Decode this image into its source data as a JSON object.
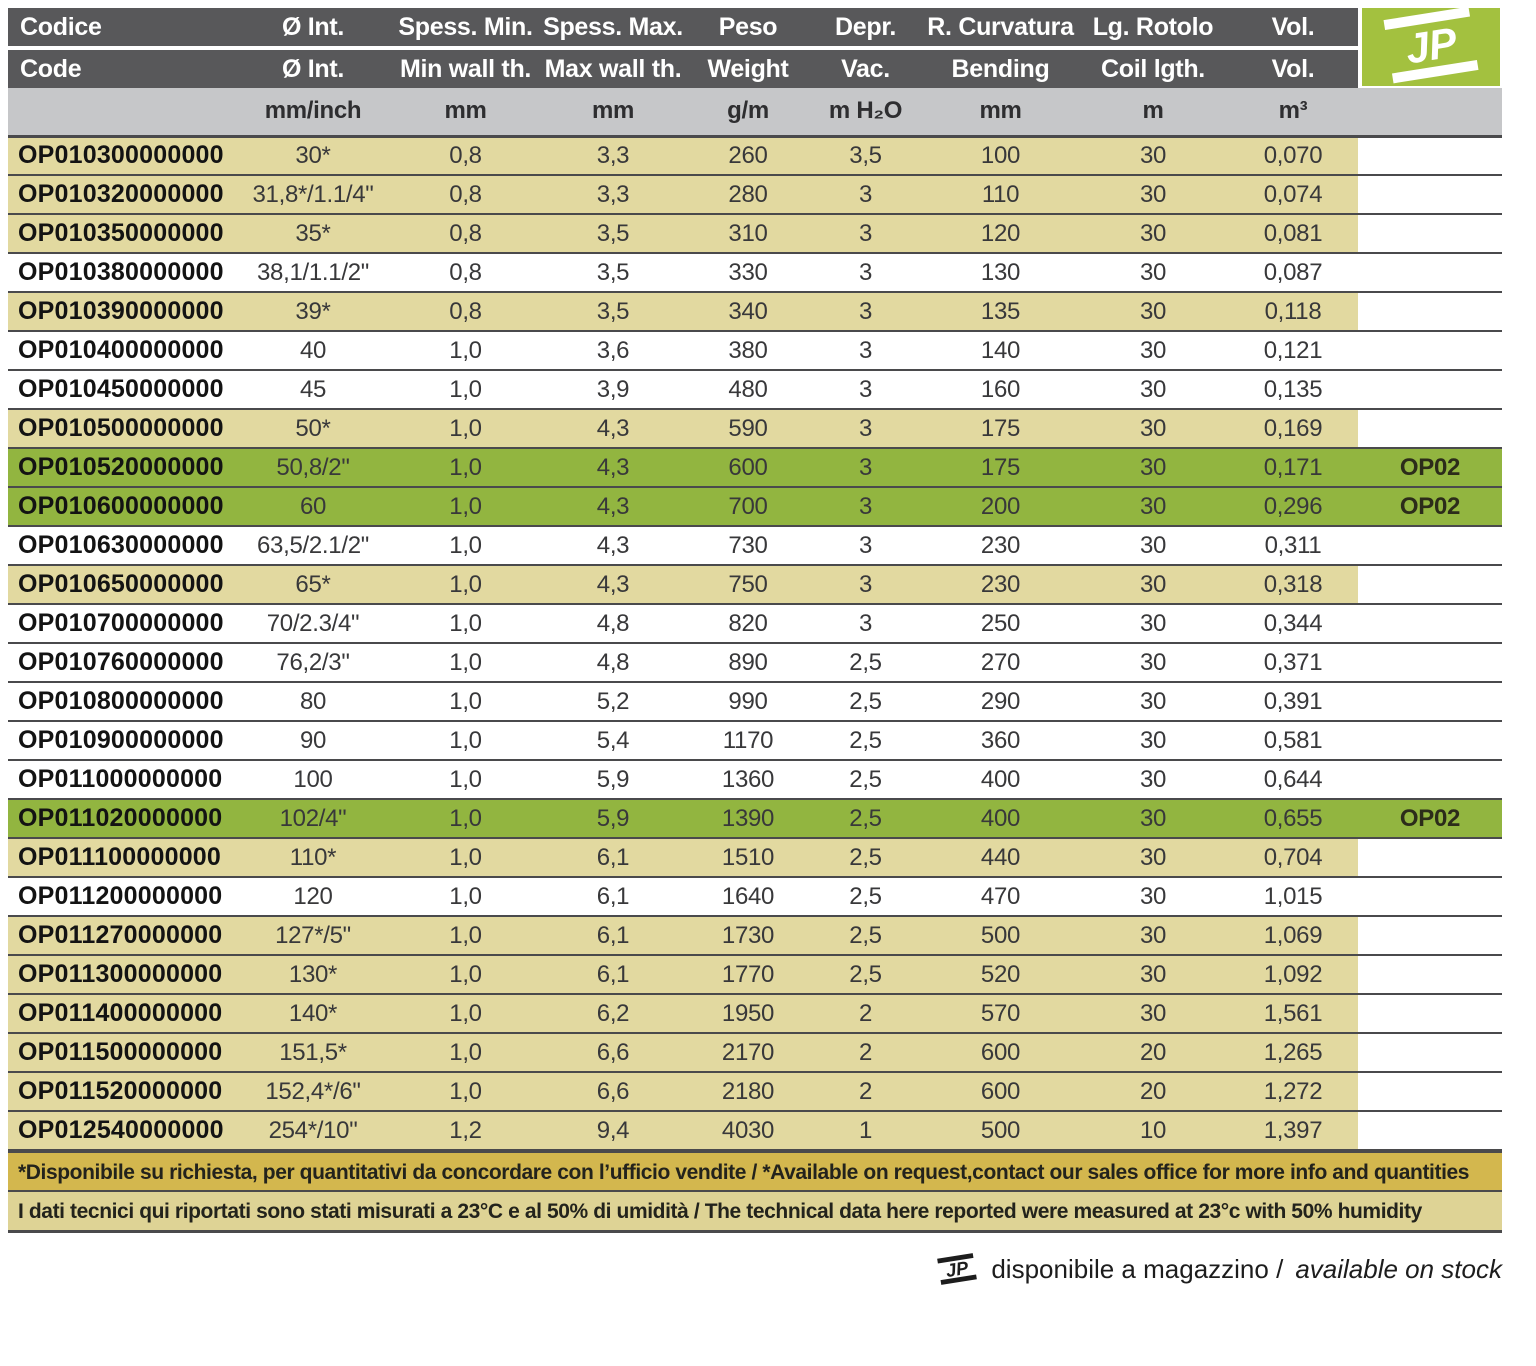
{
  "colors": {
    "header_bg": "#58585a",
    "units_bg": "#c6c7c9",
    "tan": "#e2d9a0",
    "green": "#92b540",
    "logo_green": "#a3c13f",
    "note1_bg": "#d3b74e",
    "note2_bg": "#ded395",
    "line": "#4a4a4c"
  },
  "table": {
    "header_it": [
      "Codice",
      "Ø Int.",
      "Spess. Min.",
      "Spess. Max.",
      "Peso",
      "Depr.",
      "R. Curvatura",
      "Lg. Rotolo",
      "Vol."
    ],
    "header_en": [
      "Code",
      "Ø Int.",
      "Min wall th.",
      "Max wall th.",
      "Weight",
      "Vac.",
      "Bending",
      "Coil lgth.",
      "Vol."
    ],
    "units": [
      "",
      "mm/inch",
      "mm",
      "mm",
      "g/m",
      "m H₂O",
      "mm",
      "m",
      "m³",
      ""
    ],
    "logo_text": "JP",
    "rows": [
      {
        "code": "OP010300000000",
        "diameter": "30*",
        "min_wall": "0,8",
        "max_wall": "3,3",
        "weight": "260",
        "vacuum": "3,5",
        "bending": "100",
        "coil_length": "30",
        "volume": "0,070",
        "tag": "",
        "bg": "tan"
      },
      {
        "code": "OP010320000000",
        "diameter": "31,8*/1.1/4\"",
        "min_wall": "0,8",
        "max_wall": "3,3",
        "weight": "280",
        "vacuum": "3",
        "bending": "110",
        "coil_length": "30",
        "volume": "0,074",
        "tag": "",
        "bg": "tan"
      },
      {
        "code": "OP010350000000",
        "diameter": "35*",
        "min_wall": "0,8",
        "max_wall": "3,5",
        "weight": "310",
        "vacuum": "3",
        "bending": "120",
        "coil_length": "30",
        "volume": "0,081",
        "tag": "",
        "bg": "tan"
      },
      {
        "code": "OP010380000000",
        "diameter": "38,1/1.1/2\"",
        "min_wall": "0,8",
        "max_wall": "3,5",
        "weight": "330",
        "vacuum": "3",
        "bending": "130",
        "coil_length": "30",
        "volume": "0,087",
        "tag": "",
        "bg": "white"
      },
      {
        "code": "OP010390000000",
        "diameter": "39*",
        "min_wall": "0,8",
        "max_wall": "3,5",
        "weight": "340",
        "vacuum": "3",
        "bending": "135",
        "coil_length": "30",
        "volume": "0,118",
        "tag": "",
        "bg": "tan"
      },
      {
        "code": "OP010400000000",
        "diameter": "40",
        "min_wall": "1,0",
        "max_wall": "3,6",
        "weight": "380",
        "vacuum": "3",
        "bending": "140",
        "coil_length": "30",
        "volume": "0,121",
        "tag": "",
        "bg": "white"
      },
      {
        "code": "OP010450000000",
        "diameter": "45",
        "min_wall": "1,0",
        "max_wall": "3,9",
        "weight": "480",
        "vacuum": "3",
        "bending": "160",
        "coil_length": "30",
        "volume": "0,135",
        "tag": "",
        "bg": "white"
      },
      {
        "code": "OP010500000000",
        "diameter": "50*",
        "min_wall": "1,0",
        "max_wall": "4,3",
        "weight": "590",
        "vacuum": "3",
        "bending": "175",
        "coil_length": "30",
        "volume": "0,169",
        "tag": "",
        "bg": "tan"
      },
      {
        "code": "OP010520000000",
        "diameter": "50,8/2\"",
        "min_wall": "1,0",
        "max_wall": "4,3",
        "weight": "600",
        "vacuum": "3",
        "bending": "175",
        "coil_length": "30",
        "volume": "0,171",
        "tag": "OP02",
        "bg": "green"
      },
      {
        "code": "OP010600000000",
        "diameter": "60",
        "min_wall": "1,0",
        "max_wall": "4,3",
        "weight": "700",
        "vacuum": "3",
        "bending": "200",
        "coil_length": "30",
        "volume": "0,296",
        "tag": "OP02",
        "bg": "green"
      },
      {
        "code": "OP010630000000",
        "diameter": "63,5/2.1/2\"",
        "min_wall": "1,0",
        "max_wall": "4,3",
        "weight": "730",
        "vacuum": "3",
        "bending": "230",
        "coil_length": "30",
        "volume": "0,311",
        "tag": "",
        "bg": "white"
      },
      {
        "code": "OP010650000000",
        "diameter": "65*",
        "min_wall": "1,0",
        "max_wall": "4,3",
        "weight": "750",
        "vacuum": "3",
        "bending": "230",
        "coil_length": "30",
        "volume": "0,318",
        "tag": "",
        "bg": "tan"
      },
      {
        "code": "OP010700000000",
        "diameter": "70/2.3/4\"",
        "min_wall": "1,0",
        "max_wall": "4,8",
        "weight": "820",
        "vacuum": "3",
        "bending": "250",
        "coil_length": "30",
        "volume": "0,344",
        "tag": "",
        "bg": "white"
      },
      {
        "code": "OP010760000000",
        "diameter": "76,2/3\"",
        "min_wall": "1,0",
        "max_wall": "4,8",
        "weight": "890",
        "vacuum": "2,5",
        "bending": "270",
        "coil_length": "30",
        "volume": "0,371",
        "tag": "",
        "bg": "white"
      },
      {
        "code": "OP010800000000",
        "diameter": "80",
        "min_wall": "1,0",
        "max_wall": "5,2",
        "weight": "990",
        "vacuum": "2,5",
        "bending": "290",
        "coil_length": "30",
        "volume": "0,391",
        "tag": "",
        "bg": "white"
      },
      {
        "code": "OP010900000000",
        "diameter": "90",
        "min_wall": "1,0",
        "max_wall": "5,4",
        "weight": "1170",
        "vacuum": "2,5",
        "bending": "360",
        "coil_length": "30",
        "volume": "0,581",
        "tag": "",
        "bg": "white"
      },
      {
        "code": "OP011000000000",
        "diameter": "100",
        "min_wall": "1,0",
        "max_wall": "5,9",
        "weight": "1360",
        "vacuum": "2,5",
        "bending": "400",
        "coil_length": "30",
        "volume": "0,644",
        "tag": "",
        "bg": "white"
      },
      {
        "code": "OP011020000000",
        "diameter": "102/4\"",
        "min_wall": "1,0",
        "max_wall": "5,9",
        "weight": "1390",
        "vacuum": "2,5",
        "bending": "400",
        "coil_length": "30",
        "volume": "0,655",
        "tag": "OP02",
        "bg": "green"
      },
      {
        "code": "OP011100000000",
        "diameter": "110*",
        "min_wall": "1,0",
        "max_wall": "6,1",
        "weight": "1510",
        "vacuum": "2,5",
        "bending": "440",
        "coil_length": "30",
        "volume": "0,704",
        "tag": "",
        "bg": "tan"
      },
      {
        "code": "OP011200000000",
        "diameter": "120",
        "min_wall": "1,0",
        "max_wall": "6,1",
        "weight": "1640",
        "vacuum": "2,5",
        "bending": "470",
        "coil_length": "30",
        "volume": "1,015",
        "tag": "",
        "bg": "white"
      },
      {
        "code": "OP011270000000",
        "diameter": "127*/5\"",
        "min_wall": "1,0",
        "max_wall": "6,1",
        "weight": "1730",
        "vacuum": "2,5",
        "bending": "500",
        "coil_length": "30",
        "volume": "1,069",
        "tag": "",
        "bg": "tan"
      },
      {
        "code": "OP011300000000",
        "diameter": "130*",
        "min_wall": "1,0",
        "max_wall": "6,1",
        "weight": "1770",
        "vacuum": "2,5",
        "bending": "520",
        "coil_length": "30",
        "volume": "1,092",
        "tag": "",
        "bg": "tan"
      },
      {
        "code": "OP011400000000",
        "diameter": "140*",
        "min_wall": "1,0",
        "max_wall": "6,2",
        "weight": "1950",
        "vacuum": "2",
        "bending": "570",
        "coil_length": "30",
        "volume": "1,561",
        "tag": "",
        "bg": "tan"
      },
      {
        "code": "OP011500000000",
        "diameter": "151,5*",
        "min_wall": "1,0",
        "max_wall": "6,6",
        "weight": "2170",
        "vacuum": "2",
        "bending": "600",
        "coil_length": "20",
        "volume": "1,265",
        "tag": "",
        "bg": "tan"
      },
      {
        "code": "OP011520000000",
        "diameter": "152,4*/6\"",
        "min_wall": "1,0",
        "max_wall": "6,6",
        "weight": "2180",
        "vacuum": "2",
        "bending": "600",
        "coil_length": "20",
        "volume": "1,272",
        "tag": "",
        "bg": "tan"
      },
      {
        "code": "OP012540000000",
        "diameter": "254*/10\"",
        "min_wall": "1,2",
        "max_wall": "9,4",
        "weight": "4030",
        "vacuum": "1",
        "bending": "500",
        "coil_length": "10",
        "volume": "1,397",
        "tag": "",
        "bg": "tan"
      }
    ]
  },
  "footer": {
    "note_request": "*Disponibile su richiesta, per quantitativi da concordare con l’ufficio vendite / *Available on request,contact our sales office for more info and quantities",
    "note_technical": "I dati tecnici qui riportati sono stati misurati a 23°C e al 50% di umidità / The technical data here reported were measured at 23°c with 50% humidity",
    "stock_it": "disponibile a magazzino / ",
    "stock_en": "available on stock"
  }
}
